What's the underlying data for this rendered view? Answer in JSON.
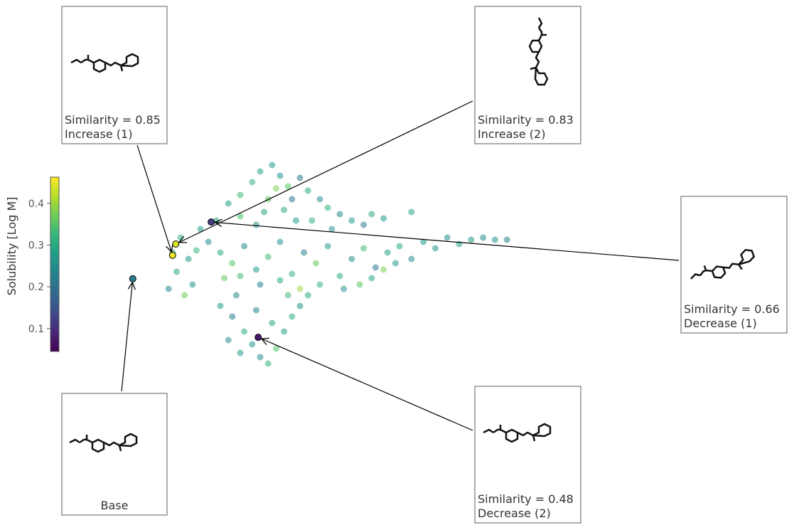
{
  "chart_data": {
    "type": "scatter",
    "colorbar_label": "Solubility [Log M]",
    "colormap": "viridis",
    "clim": [
      0.045,
      0.463
    ],
    "cticks": [
      0.1,
      0.2,
      0.3,
      0.4
    ],
    "xlim": [
      0,
      100
    ],
    "ylim": [
      0,
      100
    ],
    "x": [
      24,
      27,
      30,
      33,
      35,
      38,
      40,
      42,
      45,
      47,
      50,
      52,
      55,
      58,
      61,
      37,
      41,
      44,
      30,
      34,
      48,
      53,
      39,
      43,
      36,
      17,
      19,
      22,
      25,
      28,
      31,
      34,
      37,
      40,
      43,
      46,
      49,
      52,
      55,
      58,
      61,
      64,
      67,
      70,
      73,
      76,
      79,
      82,
      85,
      88,
      91,
      94,
      97,
      60,
      63,
      66,
      69,
      50,
      56,
      45,
      40,
      35,
      30,
      26,
      25,
      28,
      31,
      33,
      35,
      37,
      30,
      27,
      39,
      41,
      43,
      45,
      38,
      34,
      42,
      47,
      29,
      12,
      14,
      16,
      18,
      13,
      15,
      20,
      63,
      66,
      73
    ],
    "y": [
      70,
      78,
      82,
      88,
      93,
      96,
      91,
      86,
      90,
      84,
      80,
      76,
      73,
      70,
      68,
      80,
      75,
      70,
      72,
      68,
      70,
      66,
      85,
      80,
      74,
      52,
      56,
      60,
      55,
      50,
      58,
      47,
      53,
      60,
      45,
      55,
      50,
      58,
      44,
      52,
      57,
      48,
      55,
      58,
      52,
      60,
      57,
      62,
      59,
      61,
      62,
      61,
      61,
      40,
      43,
      47,
      50,
      40,
      38,
      38,
      42,
      40,
      44,
      43,
      30,
      25,
      18,
      12,
      6,
      3,
      8,
      14,
      10,
      18,
      25,
      30,
      22,
      28,
      35,
      35,
      35,
      38,
      46,
      35,
      40,
      55,
      62,
      66,
      73,
      71,
      74
    ],
    "values": [
      0.3,
      0.28,
      0.33,
      0.31,
      0.29,
      0.27,
      0.25,
      0.35,
      0.22,
      0.3,
      0.26,
      0.32,
      0.24,
      0.28,
      0.22,
      0.36,
      0.3,
      0.27,
      0.34,
      0.25,
      0.31,
      0.26,
      0.38,
      0.2,
      0.29,
      0.27,
      0.32,
      0.25,
      0.3,
      0.35,
      0.24,
      0.28,
      0.33,
      0.26,
      0.31,
      0.22,
      0.36,
      0.27,
      0.3,
      0.25,
      0.33,
      0.21,
      0.28,
      0.3,
      0.24,
      0.27,
      0.26,
      0.25,
      0.29,
      0.27,
      0.24,
      0.26,
      0.23,
      0.35,
      0.29,
      0.38,
      0.27,
      0.32,
      0.26,
      0.4,
      0.3,
      0.23,
      0.33,
      0.36,
      0.28,
      0.22,
      0.3,
      0.26,
      0.24,
      0.32,
      0.27,
      0.25,
      0.35,
      0.28,
      0.31,
      0.26,
      0.29,
      0.23,
      0.33,
      0.3,
      0.24,
      0.24,
      0.3,
      0.37,
      0.26,
      0.29,
      0.31,
      0.28,
      0.3,
      0.27,
      0.29
    ],
    "annotations": [
      {
        "text": [
          "Similarity = 0.85",
          "Increase (1)"
        ],
        "x": 13.0,
        "y": 53.7,
        "value": 0.45
      },
      {
        "text": [
          "Similarity = 0.83",
          "Increase (2)"
        ],
        "x": 13.8,
        "y": 59.0,
        "value": 0.44
      },
      {
        "text": [
          "Similarity = 0.66",
          "Decrease (1)"
        ],
        "x": 22.7,
        "y": 69.3,
        "value": 0.12
      },
      {
        "text": [
          "Similarity = 0.48",
          "Decrease (2)"
        ],
        "x": 34.5,
        "y": 15.3,
        "value": 0.07
      },
      {
        "text": [
          "Base"
        ],
        "x": 3.0,
        "y": 42.7,
        "value": 0.22
      }
    ]
  }
}
